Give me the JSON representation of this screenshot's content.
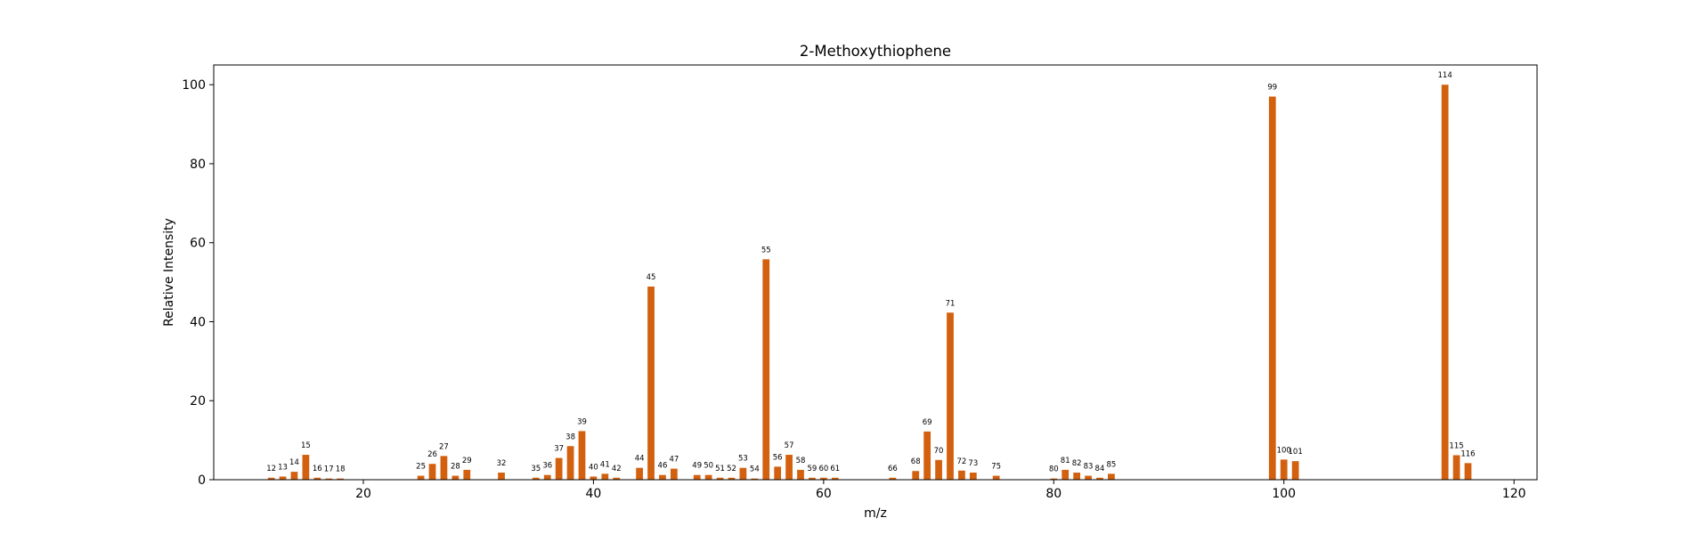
{
  "chart_data": {
    "type": "bar",
    "title": "2-Methoxythiophene",
    "xlabel": "m/z",
    "ylabel": "Relative Intensity",
    "xlim": [
      7,
      122
    ],
    "ylim": [
      0,
      105
    ],
    "xticks": [
      20,
      40,
      60,
      80,
      100,
      120
    ],
    "yticks": [
      0,
      20,
      40,
      60,
      80,
      100
    ],
    "bar_color": "#d2600e",
    "grid": false,
    "legend": "none",
    "x": [
      12,
      13,
      14,
      15,
      16,
      17,
      18,
      25,
      26,
      27,
      28,
      29,
      32,
      35,
      36,
      37,
      38,
      39,
      40,
      41,
      42,
      44,
      45,
      46,
      47,
      49,
      50,
      51,
      52,
      53,
      54,
      55,
      56,
      57,
      58,
      59,
      60,
      61,
      66,
      68,
      69,
      70,
      71,
      72,
      73,
      75,
      80,
      81,
      82,
      83,
      84,
      85,
      99,
      100,
      101,
      114,
      115,
      116
    ],
    "values": [
      0.5,
      0.8,
      2.0,
      6.3,
      0.5,
      0.3,
      0.3,
      1.0,
      4.0,
      6.0,
      1.0,
      2.5,
      1.8,
      0.5,
      1.2,
      5.5,
      8.5,
      12.3,
      0.8,
      1.5,
      0.5,
      3.0,
      48.9,
      1.2,
      2.8,
      1.2,
      1.2,
      0.5,
      0.5,
      3.0,
      0.3,
      55.8,
      3.3,
      6.3,
      2.5,
      0.5,
      0.5,
      0.5,
      0.5,
      2.2,
      12.2,
      5.0,
      42.3,
      2.3,
      1.8,
      1.0,
      0.3,
      2.5,
      1.8,
      1.0,
      0.5,
      1.5,
      97.0,
      5.1,
      4.7,
      100.0,
      6.2,
      4.2
    ]
  }
}
